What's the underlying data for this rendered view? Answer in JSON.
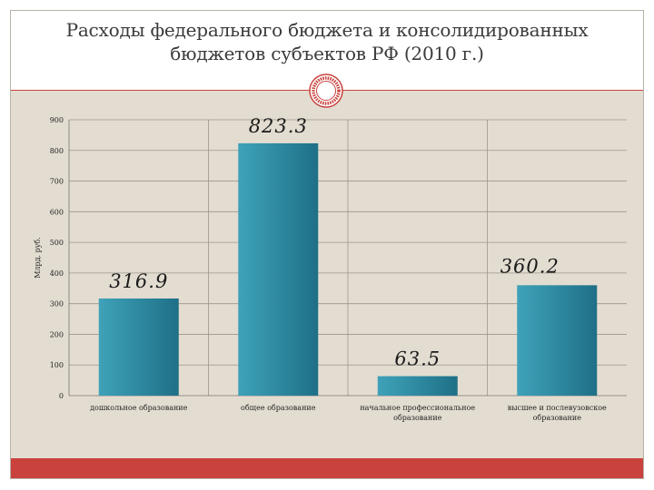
{
  "slide": {
    "title_line1": "Расходы федерального бюджета и консолидированных",
    "title_line2": "бюджетов субъектов РФ (2010 г.)"
  },
  "colors": {
    "accent": "#c9423d",
    "panel": "#e3ddd1",
    "bar": "#2e8aa0"
  },
  "chart_data": {
    "type": "bar",
    "title": "",
    "ylabel": "Млрд. руб.",
    "xlabel": "",
    "ylim": [
      0,
      900
    ],
    "yticks": [
      0,
      100,
      200,
      300,
      400,
      500,
      600,
      700,
      800,
      900
    ],
    "grid": true,
    "categories": [
      [
        "дошкольное образование"
      ],
      [
        "общее образование"
      ],
      [
        "начальное профессиональное",
        "образование"
      ],
      [
        "высшее и послевузовское",
        "образование"
      ]
    ],
    "values": [
      316.9,
      823.3,
      63.5,
      360.2
    ],
    "data_labels": [
      "316.9",
      "823.3",
      "63.5",
      "360.2"
    ]
  }
}
